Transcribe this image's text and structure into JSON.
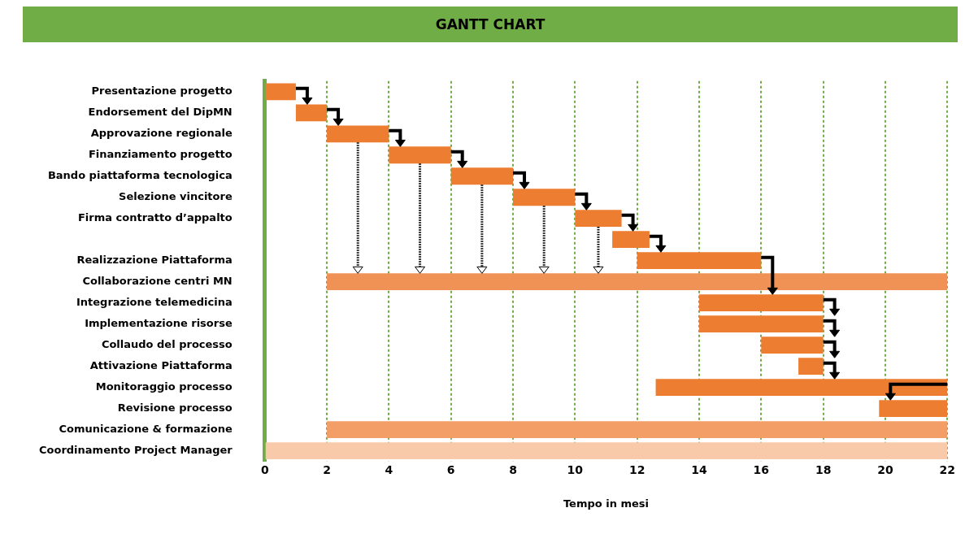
{
  "chart_data": {
    "type": "bar",
    "orientation": "horizontal",
    "title": "GANTT CHART",
    "xlabel": "Tempo in mesi",
    "categories": [
      "Presentazione progetto",
      "Endorsement del DipMN",
      "Approvazione regionale",
      "Finanziamento progetto",
      "Bando piattaforma tecnologica",
      "Selezione vincitore",
      "Firma contratto d’appalto",
      null,
      "Realizzazione Piattaforma",
      "Collaborazione centri MN",
      "Integrazione telemedicina",
      "Implementazione risorse",
      "Collaudo del processo",
      "Attivazione Piattaforma",
      "Monitoraggio processo",
      "Revisione processo",
      "Comunicazione & formazione",
      "Coordinamento Project Manager"
    ],
    "base": [
      0,
      1,
      2,
      4,
      6,
      8,
      10,
      11.2,
      12,
      2,
      14,
      14,
      16,
      17.2,
      12.6,
      19.8,
      2,
      0
    ],
    "values": [
      1,
      1,
      2,
      2,
      2,
      2,
      1.5,
      1.2,
      4,
      20,
      4,
      4,
      2,
      0.8,
      9.4,
      2.2,
      20,
      22
    ],
    "colors": [
      "#ed7d31",
      "#ed7d31",
      "#ed7d31",
      "#ed7d31",
      "#ed7d31",
      "#ed7d31",
      "#ed7d31",
      "#ed7d31",
      "#ed7d31",
      "#f09255",
      "#ed7d31",
      "#ed7d31",
      "#ed7d31",
      "#ed7d31",
      "#ed7d31",
      "#ed7d31",
      "#f29e66",
      "#f8caa9"
    ],
    "xlim": [
      0,
      22
    ],
    "xticks": [
      0,
      2,
      4,
      6,
      8,
      10,
      12,
      14,
      16,
      18,
      20,
      22
    ],
    "grid": "x",
    "legend": false
  }
}
